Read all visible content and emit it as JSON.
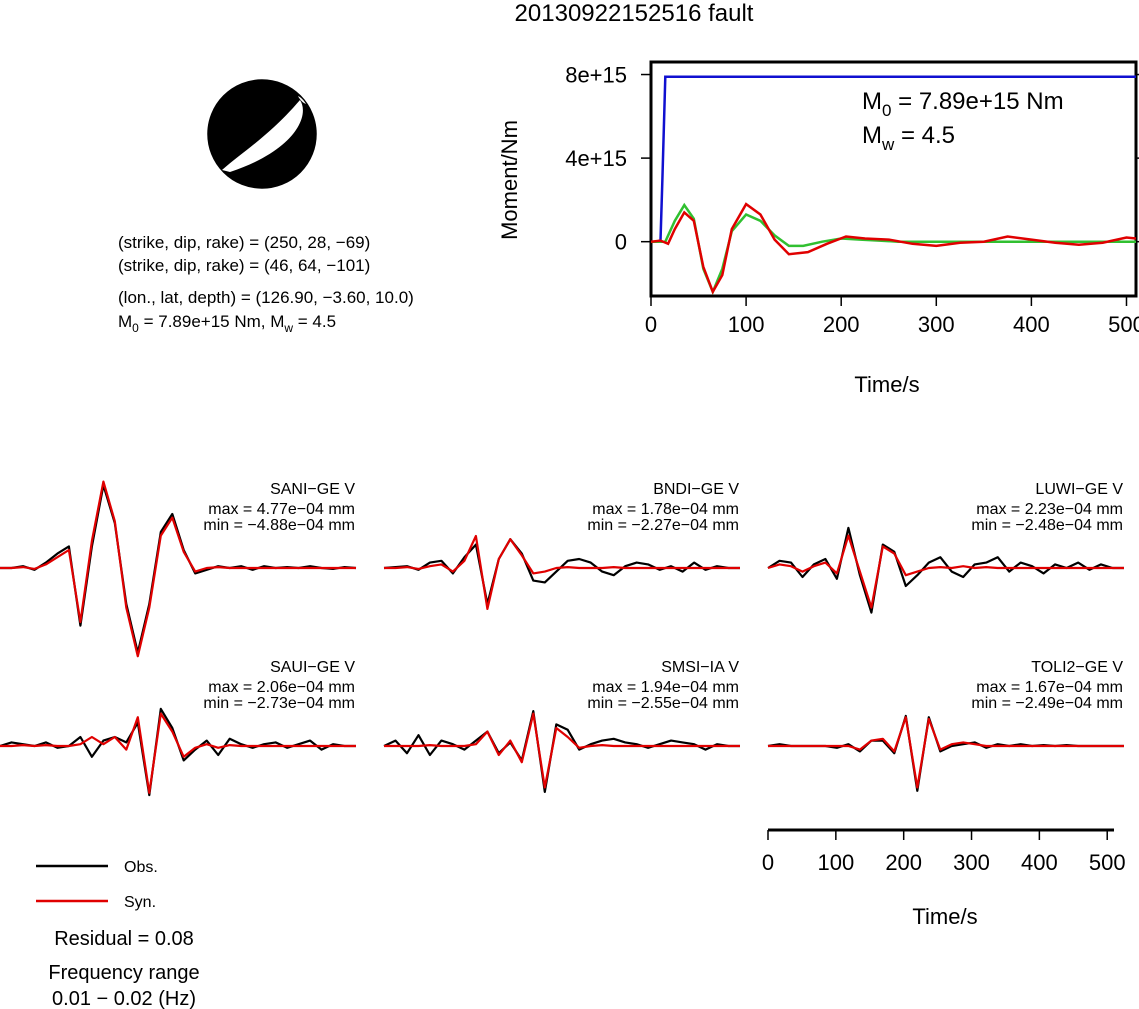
{
  "title": "20130922152516 fault",
  "beachball": {
    "compressional_color": "#000000",
    "dilatational_color": "#ffffff"
  },
  "solution": {
    "plane1": "(strike, dip, rake) = (250, 28, −69)",
    "plane2": "(strike, dip, rake) = (46, 64, −101)",
    "location": "(lon., lat, depth) = (126.90, −3.60, 10.0)",
    "m0_label": "M",
    "m0_sub": "0",
    "m0_rest": " = 7.89e+15 Nm, M",
    "mw_sub": "w",
    "mw_rest": " = 4.5"
  },
  "moment_panel": {
    "m0_main": "M",
    "m0_sub": "0",
    "m0_rest": " = 7.89e+15 Nm",
    "mw_main": "M",
    "mw_sub": "w",
    "mw_rest": " = 4.5"
  },
  "legend": {
    "obs_label": "Obs.",
    "syn_label": "Syn.",
    "obs_color": "#000000",
    "syn_color": "#e00000"
  },
  "stats": {
    "residual": "Residual = 0.08",
    "freq_label": "Frequency range",
    "freq_value": "0.01 − 0.02 (Hz)"
  },
  "chart_data": [
    {
      "type": "line",
      "title": "",
      "xlabel": "Time/s",
      "ylabel": "Moment/Nm",
      "xlim": [
        0,
        510
      ],
      "ylim": [
        -2600000000000000.0,
        8600000000000000.0
      ],
      "xticks": [
        0,
        100,
        200,
        300,
        400,
        500
      ],
      "xtick_labels": [
        "0",
        "100",
        "200",
        "300",
        "400",
        "500"
      ],
      "yticks": [
        0,
        4000000000000000.0,
        8000000000000000.0
      ],
      "ytick_labels": [
        "0",
        "4e+15",
        "8e+15"
      ],
      "grid": false,
      "series": [
        {
          "color": "#1010d0",
          "x": [
            0,
            5,
            10,
            12,
            15,
            18,
            510
          ],
          "y": [
            0,
            0,
            50000000000000.0,
            3000000000000000.0,
            7890000000000000.0,
            7890000000000000.0,
            7890000000000000.0
          ]
        },
        {
          "color": "#30c030",
          "x": [
            0,
            15,
            25,
            35,
            45,
            55,
            65,
            75,
            85,
            100,
            115,
            130,
            145,
            160,
            180,
            200,
            220,
            240,
            260,
            280,
            300,
            350,
            400,
            450,
            510
          ],
          "y": [
            0,
            0,
            1000000000000000.0,
            1750000000000000.0,
            1100000000000000.0,
            -1300000000000000.0,
            -2400000000000000.0,
            -1300000000000000.0,
            500000000000000.0,
            1300000000000000.0,
            1000000000000000.0,
            300000000000000.0,
            -200000000000000.0,
            -200000000000000.0,
            0,
            150000000000000.0,
            100000000000000.0,
            50000000000000.0,
            0,
            0,
            0,
            0,
            0,
            0,
            0
          ]
        },
        {
          "color": "#e00000",
          "x": [
            0,
            10,
            18,
            25,
            35,
            45,
            55,
            65,
            75,
            85,
            100,
            115,
            130,
            145,
            165,
            185,
            205,
            225,
            250,
            275,
            300,
            325,
            350,
            375,
            400,
            425,
            450,
            475,
            500,
            510
          ],
          "y": [
            0,
            50000000000000.0,
            -100000000000000.0,
            600000000000000.0,
            1400000000000000.0,
            1000000000000000.0,
            -1200000000000000.0,
            -2400000000000000.0,
            -1600000000000000.0,
            600000000000000.0,
            1800000000000000.0,
            1300000000000000.0,
            100000000000000.0,
            -600000000000000.0,
            -500000000000000.0,
            -100000000000000.0,
            250000000000000.0,
            150000000000000.0,
            100000000000000.0,
            -100000000000000.0,
            -200000000000000.0,
            -50000000000000.0,
            0.0,
            250000000000000.0,
            100000000000000.0,
            -50000000000000.0,
            -150000000000000.0,
            -50000000000000.0,
            200000000000000.0,
            150000000000000.0
          ]
        }
      ]
    },
    {
      "type": "line",
      "title": "",
      "xlabel": "Time/s",
      "ylabel": "",
      "xlim": [
        0,
        510
      ],
      "xticks": [
        0,
        100,
        200,
        300,
        400,
        500
      ],
      "xtick_labels": [
        "0",
        "100",
        "200",
        "300",
        "400",
        "500"
      ],
      "stations": [
        {
          "label": "SANI−GE V",
          "max": "max = 4.77e−04 mm",
          "min": "min = −4.88e−04 mm",
          "peak": 4.77,
          "trough": -4.88,
          "obs": [
            0,
            0,
            0.1,
            -0.1,
            0.3,
            0.8,
            1.2,
            -3.2,
            1.2,
            4.6,
            2.5,
            -2.0,
            -4.7,
            -2.0,
            2.0,
            3.0,
            1.0,
            -0.3,
            -0.1,
            0.1,
            0,
            0.1,
            -0.1,
            0.1,
            0,
            0.05,
            0,
            0.1,
            0,
            -0.05,
            0.05,
            0
          ],
          "syn": [
            0,
            0,
            0.05,
            -0.05,
            0.2,
            0.6,
            1.0,
            -3.0,
            1.5,
            4.8,
            2.6,
            -2.2,
            -4.9,
            -2.2,
            1.8,
            2.8,
            0.9,
            -0.2,
            0,
            0.05,
            0,
            0,
            0,
            0,
            0,
            0,
            0,
            0,
            0,
            0,
            0,
            0
          ]
        },
        {
          "label": "BNDI−GE V",
          "max": "max = 1.78e−04 mm",
          "min": "min = −2.27e−04 mm",
          "peak": 1.78,
          "trough": -2.27,
          "obs": [
            0,
            0.05,
            0.1,
            -0.1,
            0.3,
            0.4,
            -0.3,
            0.6,
            1.3,
            -2.0,
            0.5,
            1.6,
            0.8,
            -0.7,
            -0.8,
            -0.2,
            0.4,
            0.5,
            0.3,
            -0.2,
            -0.4,
            0.1,
            0.3,
            0.2,
            -0.1,
            0.1,
            -0.2,
            0.3,
            -0.1,
            0.1,
            0,
            0
          ],
          "syn": [
            0,
            0,
            0.05,
            -0.05,
            0.1,
            0.2,
            -0.2,
            0.4,
            1.78,
            -2.27,
            0.5,
            1.6,
            0.7,
            -0.3,
            -0.2,
            0,
            0.05,
            0,
            0,
            0,
            0.05,
            0,
            0,
            0,
            0,
            0,
            0,
            0,
            0,
            0,
            0,
            0
          ]
        },
        {
          "label": "LUWI−GE V",
          "max": "max = 2.23e−04 mm",
          "min": "min = −2.48e−04 mm",
          "peak": 2.23,
          "trough": -2.48,
          "obs": [
            0,
            0.4,
            0.3,
            -0.5,
            0.2,
            0.5,
            -0.6,
            2.23,
            -0.4,
            -2.48,
            1.3,
            0.9,
            -1.0,
            -0.4,
            0.3,
            0.6,
            -0.2,
            -0.5,
            0.2,
            0.3,
            0.6,
            -0.2,
            0.3,
            0.1,
            -0.3,
            0.2,
            0,
            0.3,
            -0.1,
            0.2,
            0,
            0
          ],
          "syn": [
            0,
            0.2,
            0.1,
            -0.2,
            0.1,
            0.3,
            -0.3,
            1.8,
            -0.2,
            -2.2,
            1.2,
            0.8,
            -0.4,
            -0.2,
            0,
            0.05,
            0,
            0.1,
            0,
            0.05,
            0,
            0,
            0,
            0,
            0,
            0,
            0,
            0,
            0,
            0,
            0,
            0
          ]
        },
        {
          "label": "SAUI−GE V",
          "max": "max = 2.06e−04 mm",
          "min": "min = −2.73e−04 mm",
          "peak": 2.06,
          "trough": -2.73,
          "obs": [
            0,
            0.2,
            0.1,
            0,
            0.2,
            -0.1,
            0,
            0.5,
            -0.6,
            0.3,
            0.5,
            0.2,
            1.3,
            -2.73,
            2.06,
            1.0,
            -0.8,
            -0.2,
            0.3,
            -0.5,
            0.4,
            0.1,
            -0.1,
            0.1,
            0.2,
            -0.1,
            0.1,
            0.3,
            -0.2,
            0.1,
            0,
            0
          ],
          "syn": [
            0,
            0,
            0.05,
            0,
            0.05,
            0,
            0,
            0.1,
            0.5,
            0.1,
            0.5,
            -0.2,
            1.6,
            -2.6,
            1.8,
            0.8,
            -0.6,
            -0.1,
            0.1,
            -0.1,
            0.05,
            0,
            0,
            0,
            0,
            0,
            0,
            0,
            0,
            0,
            0,
            0
          ]
        },
        {
          "label": "SMSI−IA V",
          "max": "max = 1.94e−04 mm",
          "min": "min = −2.55e−04 mm",
          "peak": 1.94,
          "trough": -2.55,
          "obs": [
            0,
            0.3,
            -0.4,
            0.6,
            -0.5,
            0.3,
            0.1,
            -0.2,
            0.3,
            0.8,
            -0.4,
            0.2,
            -0.8,
            1.94,
            -2.55,
            1.2,
            0.9,
            -0.2,
            0.1,
            0.3,
            0.4,
            0.2,
            0.1,
            -0.1,
            0.1,
            0.3,
            0.2,
            0.1,
            -0.2,
            0.1,
            0,
            0
          ],
          "syn": [
            0,
            0,
            0,
            0,
            0.05,
            0,
            0,
            0,
            0.1,
            0.8,
            -0.5,
            0.3,
            -0.9,
            1.8,
            -2.3,
            1.0,
            0.5,
            -0.1,
            0,
            0.05,
            0,
            0,
            0,
            0,
            0,
            0,
            0,
            0,
            0,
            0,
            0,
            0
          ]
        },
        {
          "label": "TOLI2−GE V",
          "max": "max = 1.67e−04 mm",
          "min": "min = −2.49e−04 mm",
          "peak": 1.67,
          "trough": -2.49,
          "obs": [
            0,
            0.1,
            0,
            0,
            0,
            0,
            -0.1,
            0.1,
            -0.3,
            0.3,
            0.3,
            -0.4,
            1.67,
            -2.49,
            1.6,
            -0.3,
            0,
            0.1,
            0.2,
            -0.1,
            0.1,
            0,
            0.1,
            0,
            0.05,
            0,
            0.05,
            0,
            0,
            0,
            0,
            0
          ],
          "syn": [
            0,
            0,
            0,
            0,
            0,
            0,
            0,
            0,
            -0.2,
            0.3,
            0.4,
            -0.3,
            1.6,
            -2.3,
            1.5,
            -0.2,
            0.1,
            0.2,
            0.1,
            0,
            0,
            0,
            0,
            0,
            0,
            0,
            0,
            0,
            0,
            0,
            0,
            0
          ]
        }
      ]
    }
  ]
}
